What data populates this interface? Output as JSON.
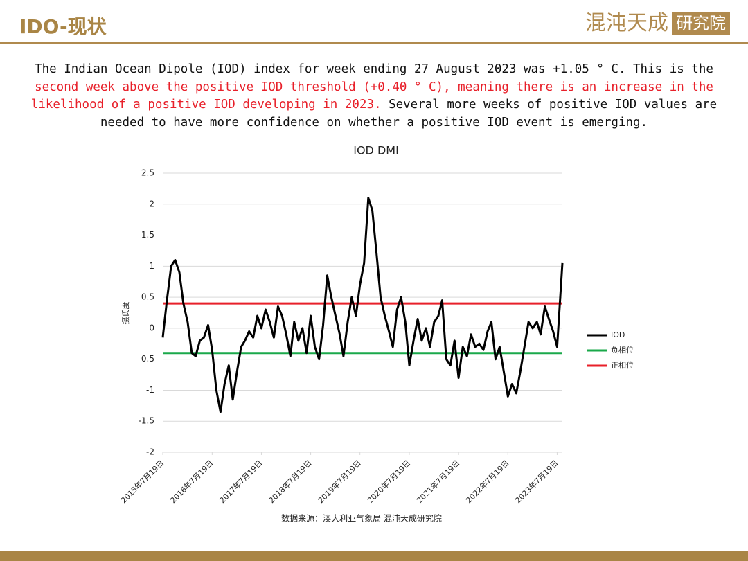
{
  "header": {
    "title": "IDO-现状",
    "logo": "混沌天成",
    "logo_box": "研究院"
  },
  "paragraph": [
    {
      "text": "The Indian Ocean Dipole (IOD) index for week ending 27 August 2023 was +1.05 ° C. This is the ",
      "color": "#111111"
    },
    {
      "text": "second week above the positive IOD threshold (+0.40 ° C), meaning there is an increase in the likelihood of a positive IOD developing in 2023.",
      "color": "#e8202a"
    },
    {
      "text": " Several more weeks of positive IOD values are needed to have more confidence on whether a positive IOD event is emerging.",
      "color": "#111111"
    }
  ],
  "chart_data": {
    "type": "line",
    "title": "IOD DMI",
    "y_label": "摄氏度",
    "x": [
      "2015-07-19",
      "2015-08-19",
      "2015-09-19",
      "2015-10-19",
      "2015-11-19",
      "2015-12-19",
      "2016-01-19",
      "2016-02-19",
      "2016-03-19",
      "2016-04-19",
      "2016-05-19",
      "2016-06-19",
      "2016-07-19",
      "2016-08-19",
      "2016-09-19",
      "2016-10-19",
      "2016-11-19",
      "2016-12-19",
      "2017-01-19",
      "2017-02-19",
      "2017-03-19",
      "2017-04-19",
      "2017-05-19",
      "2017-06-19",
      "2017-07-19",
      "2017-08-19",
      "2017-09-19",
      "2017-10-19",
      "2017-11-19",
      "2017-12-19",
      "2018-01-19",
      "2018-02-19",
      "2018-03-19",
      "2018-04-19",
      "2018-05-19",
      "2018-06-19",
      "2018-07-19",
      "2018-08-19",
      "2018-09-19",
      "2018-10-19",
      "2018-11-19",
      "2018-12-19",
      "2019-01-19",
      "2019-02-19",
      "2019-03-19",
      "2019-04-19",
      "2019-05-19",
      "2019-06-19",
      "2019-07-19",
      "2019-08-19",
      "2019-09-19",
      "2019-10-19",
      "2019-11-19",
      "2019-12-19",
      "2020-01-19",
      "2020-02-19",
      "2020-03-19",
      "2020-04-19",
      "2020-05-19",
      "2020-06-19",
      "2020-07-19",
      "2020-08-19",
      "2020-09-19",
      "2020-10-19",
      "2020-11-19",
      "2020-12-19",
      "2021-01-19",
      "2021-02-19",
      "2021-03-19",
      "2021-04-19",
      "2021-05-19",
      "2021-06-19",
      "2021-07-19",
      "2021-08-19",
      "2021-09-19",
      "2021-10-19",
      "2021-11-19",
      "2021-12-19",
      "2022-01-19",
      "2022-02-19",
      "2022-03-19",
      "2022-04-19",
      "2022-05-19",
      "2022-06-19",
      "2022-07-19",
      "2022-08-19",
      "2022-09-19",
      "2022-10-19",
      "2022-11-19",
      "2022-12-19",
      "2023-01-19",
      "2023-02-19",
      "2023-03-19",
      "2023-04-19",
      "2023-05-19",
      "2023-06-19",
      "2023-07-19",
      "2023-08-27"
    ],
    "series": [
      {
        "name": "IOD",
        "color": "#000000",
        "values": [
          -0.15,
          0.45,
          1.0,
          1.1,
          0.9,
          0.4,
          0.1,
          -0.4,
          -0.45,
          -0.2,
          -0.15,
          0.05,
          -0.35,
          -1.0,
          -1.35,
          -0.9,
          -0.6,
          -1.15,
          -0.7,
          -0.3,
          -0.2,
          -0.05,
          -0.15,
          0.2,
          0.0,
          0.3,
          0.1,
          -0.15,
          0.35,
          0.2,
          -0.1,
          -0.45,
          0.1,
          -0.2,
          0.0,
          -0.4,
          0.2,
          -0.3,
          -0.5,
          0.05,
          0.85,
          0.5,
          0.2,
          -0.1,
          -0.45,
          0.1,
          0.5,
          0.2,
          0.7,
          1.05,
          2.1,
          1.9,
          1.2,
          0.5,
          0.2,
          -0.05,
          -0.3,
          0.3,
          0.5,
          0.1,
          -0.6,
          -0.2,
          0.15,
          -0.2,
          0.0,
          -0.3,
          0.1,
          0.2,
          0.45,
          -0.5,
          -0.6,
          -0.2,
          -0.8,
          -0.3,
          -0.45,
          -0.1,
          -0.3,
          -0.25,
          -0.35,
          -0.05,
          0.1,
          -0.5,
          -0.3,
          -0.7,
          -1.1,
          -0.9,
          -1.05,
          -0.7,
          -0.3,
          0.1,
          0.0,
          0.1,
          -0.1,
          0.35,
          0.15,
          -0.05,
          -0.3,
          1.05
        ]
      }
    ],
    "hlines": [
      {
        "name": "负相位",
        "color": "#1aa84a",
        "value": -0.4
      },
      {
        "name": "正相位",
        "color": "#e8202a",
        "value": 0.4
      }
    ],
    "xlim": [
      "2015-07-19",
      "2023-08-27"
    ],
    "xticks": [
      {
        "value": "2015-07-19",
        "label": "2015年7月19日"
      },
      {
        "value": "2016-07-19",
        "label": "2016年7月19日"
      },
      {
        "value": "2017-07-19",
        "label": "2017年7月19日"
      },
      {
        "value": "2018-07-19",
        "label": "2018年7月19日"
      },
      {
        "value": "2019-07-19",
        "label": "2019年7月19日"
      },
      {
        "value": "2020-07-19",
        "label": "2020年7月19日"
      },
      {
        "value": "2021-07-19",
        "label": "2021年7月19日"
      },
      {
        "value": "2022-07-19",
        "label": "2022年7月19日"
      },
      {
        "value": "2023-07-19",
        "label": "2023年7月19日"
      }
    ],
    "ylim": [
      -2,
      2.5
    ],
    "yticks": [
      -2,
      -1.5,
      -1,
      -0.5,
      0,
      0.5,
      1,
      1.5,
      2,
      2.5
    ],
    "grid": true,
    "legend": "right",
    "source": "数据来源：澳大利亚气象局 混沌天成研究院"
  }
}
